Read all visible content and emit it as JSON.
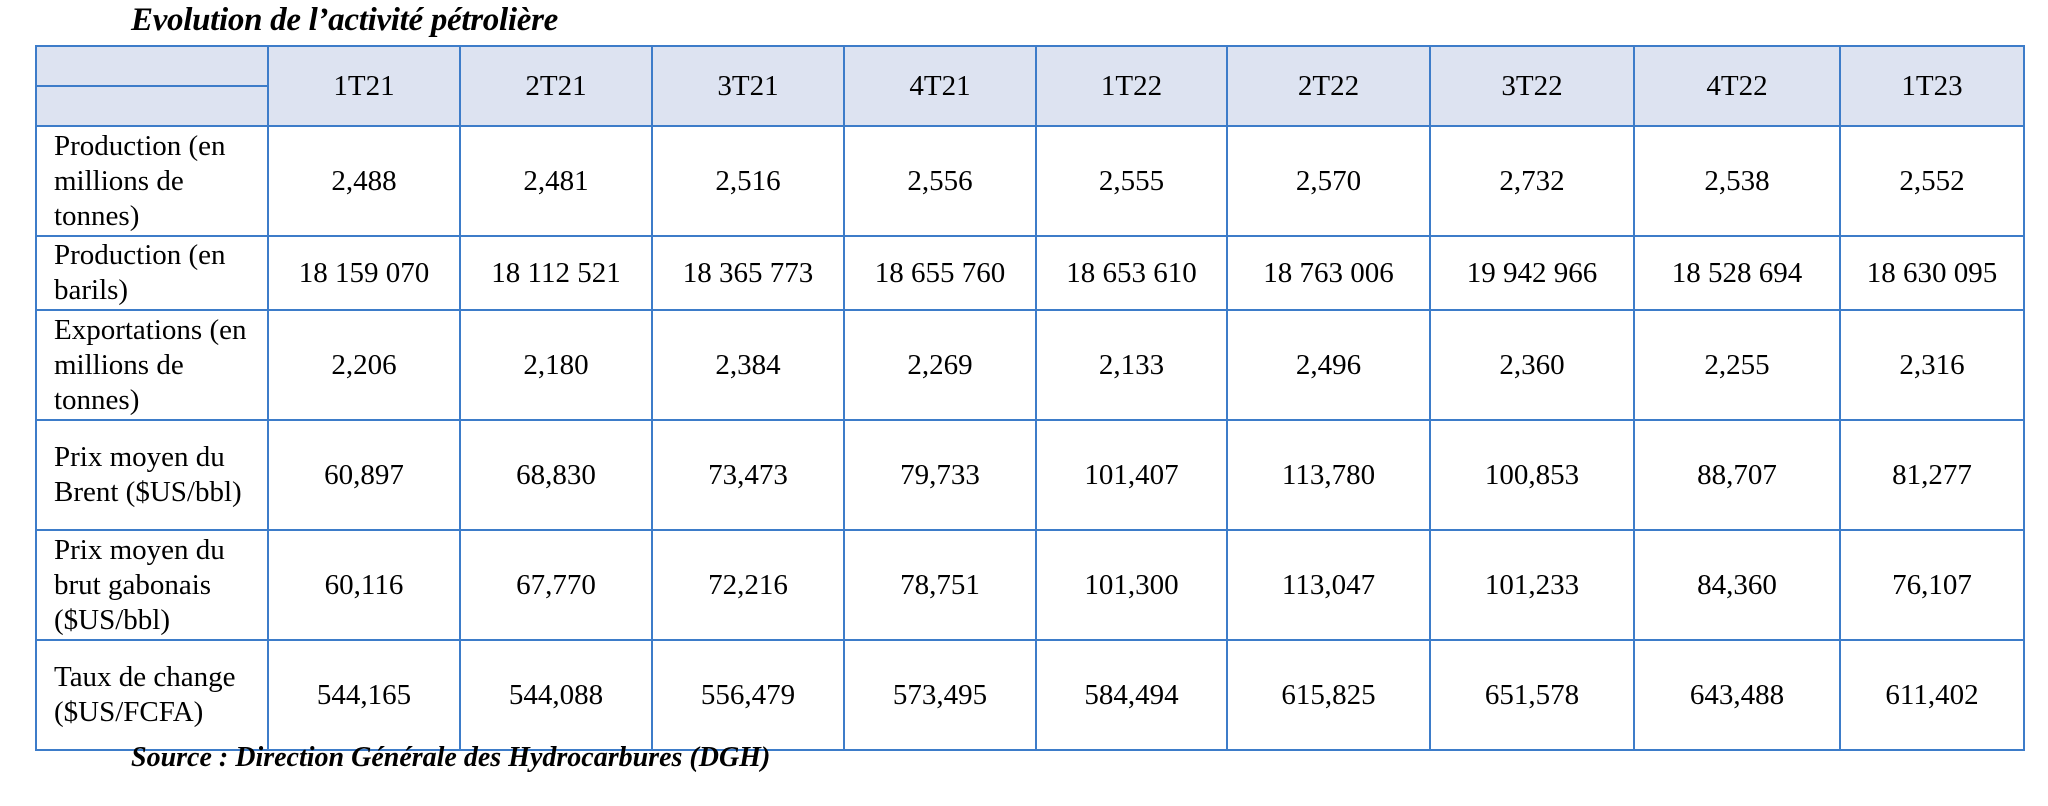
{
  "title": "Evolution de l’activité pétrolière",
  "source": "Source : Direction Générale des Hydrocarbures (DGH)",
  "table": {
    "columns": [
      "1T21",
      "2T21",
      "3T21",
      "4T21",
      "1T22",
      "2T22",
      "3T22",
      "4T22",
      "1T23"
    ],
    "rows": [
      {
        "label": "Production (en millions de tonnes)",
        "values": [
          "2,488",
          "2,481",
          "2,516",
          "2,556",
          "2,555",
          "2,570",
          "2,732",
          "2,538",
          "2,552"
        ]
      },
      {
        "label": "Production (en barils)",
        "values": [
          "18 159 070",
          "18 112 521",
          "18 365 773",
          "18 655 760",
          "18 653 610",
          "18 763 006",
          "19 942 966",
          "18 528 694",
          "18 630 095"
        ]
      },
      {
        "label": "Exportations (en millions de tonnes)",
        "values": [
          "2,206",
          "2,180",
          "2,384",
          "2,269",
          "2,133",
          "2,496",
          "2,360",
          "2,255",
          "2,316"
        ]
      },
      {
        "label": "Prix moyen du Brent ($US/bbl)",
        "values": [
          "60,897",
          "68,830",
          "73,473",
          "79,733",
          "101,407",
          "113,780",
          "100,853",
          "88,707",
          "81,277"
        ]
      },
      {
        "label": "Prix moyen du brut gabonais ($US/bbl)",
        "values": [
          "60,116",
          "67,770",
          "72,216",
          "78,751",
          "101,300",
          "113,047",
          "101,233",
          "84,360",
          "76,107"
        ]
      },
      {
        "label": "Taux de change ($US/FCFA)",
        "values": [
          "544,165",
          "544,088",
          "556,479",
          "573,495",
          "584,494",
          "615,825",
          "651,578",
          "643,488",
          "611,402"
        ]
      }
    ]
  },
  "colors": {
    "border": "#3d7cc9",
    "header_background": "#dde3f1"
  }
}
